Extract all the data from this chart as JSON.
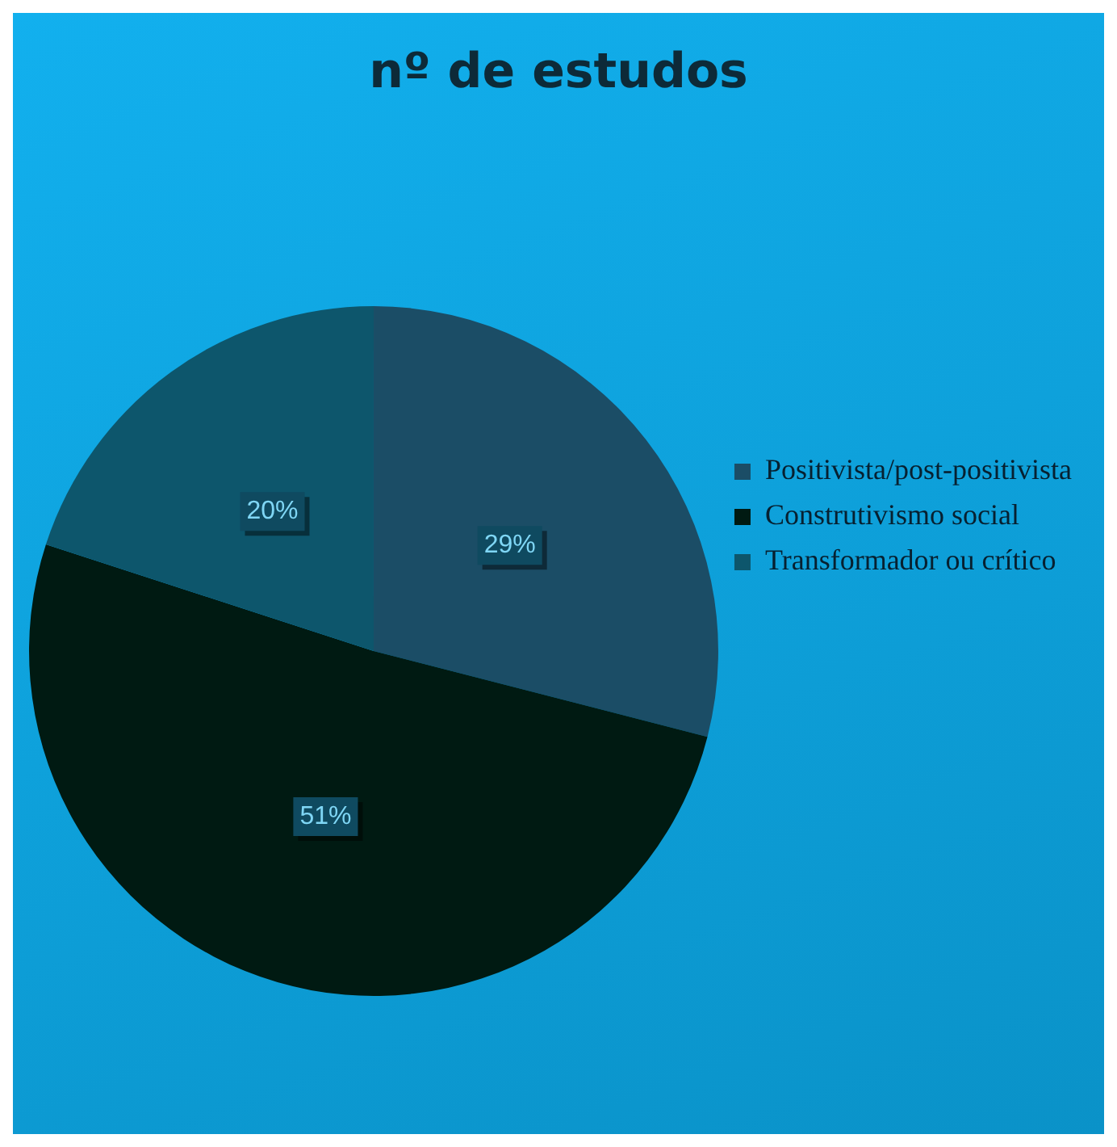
{
  "chart_data": {
    "type": "pie",
    "title": "nº de estudos",
    "categories": [
      "Positivista/post-positivista",
      "Construtivismo social",
      "Transformador ou crítico"
    ],
    "values": [
      29,
      51,
      20
    ],
    "colors": [
      "#1b4d66",
      "#001a12",
      "#0d566c"
    ],
    "value_labels": [
      "29%",
      "51%",
      "20%"
    ],
    "legend": "right"
  }
}
